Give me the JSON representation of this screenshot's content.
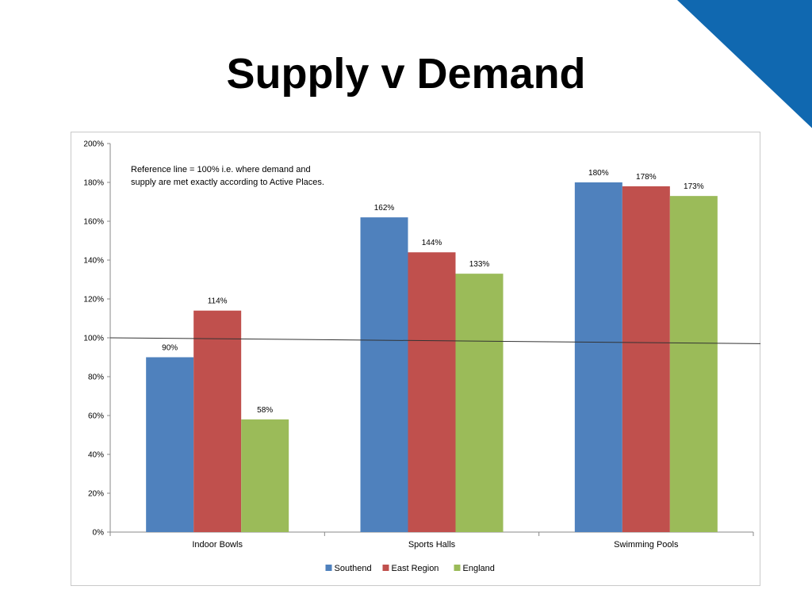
{
  "slide": {
    "title": "Supply v Demand",
    "accent_color": "#1068B0"
  },
  "chart_data": {
    "type": "bar",
    "categories": [
      "Indoor Bowls",
      "Sports Halls",
      "Swimming Pools"
    ],
    "series": [
      {
        "name": "Southend",
        "color": "#4F81BD",
        "values": [
          90,
          162,
          180
        ],
        "labels": [
          "90%",
          "162%",
          "180%"
        ]
      },
      {
        "name": "East Region",
        "color": "#C0504D",
        "values": [
          114,
          144,
          178
        ],
        "labels": [
          "114%",
          "144%",
          "178%"
        ]
      },
      {
        "name": "England",
        "color": "#9BBB59",
        "values": [
          58,
          133,
          173
        ],
        "labels": [
          "58%",
          "133%",
          "173%"
        ]
      }
    ],
    "ylim": [
      0,
      200
    ],
    "yticks": [
      "0%",
      "20%",
      "40%",
      "60%",
      "80%",
      "100%",
      "120%",
      "140%",
      "160%",
      "180%",
      "200%"
    ],
    "reference_line": {
      "start": 100,
      "end": 97
    },
    "annotation": [
      "Reference line = 100% i.e. where demand and",
      "supply are met exactly according to Active Places."
    ],
    "legend_position": "bottom",
    "grid": false
  }
}
